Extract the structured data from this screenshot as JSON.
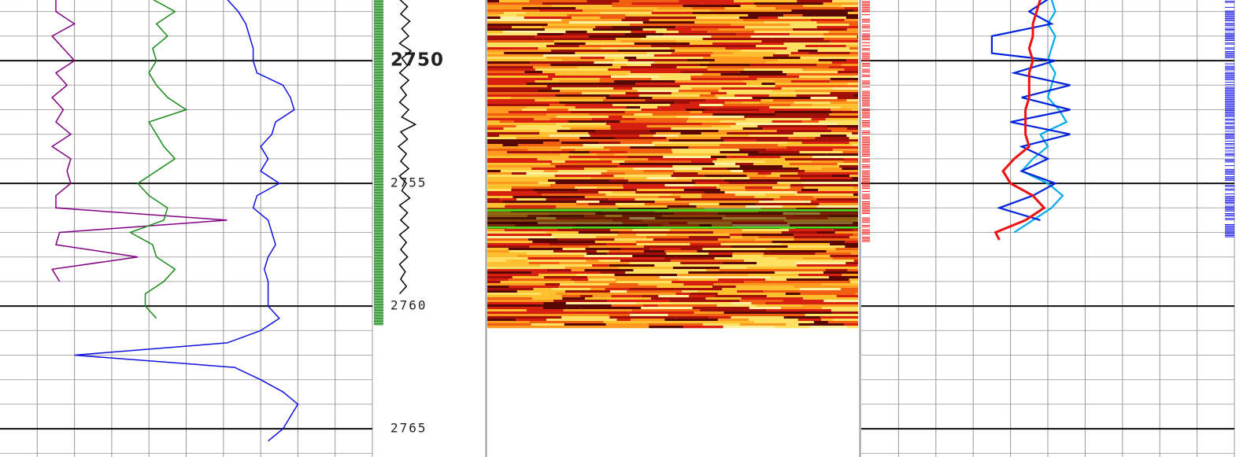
{
  "chart_data": [
    {
      "type": "line",
      "xlim": [
        0,
        10
      ],
      "ylim": [
        2747.53,
        2766.15
      ],
      "series": [
        {
          "color": "#800080",
          "depth": [
            2747.5,
            2748,
            2748.5,
            2749,
            2749.5,
            2750,
            2750.5,
            2751,
            2751.5,
            2752,
            2752.5,
            2753,
            2753.5,
            2754,
            2754.5,
            2755,
            2755.5,
            2756,
            2756.5,
            2757,
            2757.5,
            2758,
            2758.5,
            2759
          ],
          "values": [
            1.5,
            1.5,
            2.0,
            1.4,
            1.7,
            2.0,
            1.5,
            1.8,
            1.4,
            1.7,
            1.5,
            1.9,
            1.4,
            1.9,
            1.8,
            1.9,
            1.5,
            1.5,
            6.1,
            1.6,
            1.5,
            3.7,
            1.4,
            1.6
          ]
        },
        {
          "color": "#1a8a1a",
          "depth": [
            2747.5,
            2748,
            2748.5,
            2749,
            2749.5,
            2750,
            2750.5,
            2751,
            2751.5,
            2752,
            2752.5,
            2753,
            2753.5,
            2754,
            2754.5,
            2755,
            2755.5,
            2756,
            2756.5,
            2757,
            2757.5,
            2758,
            2758.5,
            2759,
            2759.5,
            2760,
            2760.5
          ],
          "values": [
            4.1,
            4.7,
            4.2,
            4.5,
            4.1,
            4.2,
            4.0,
            4.2,
            4.5,
            5.0,
            4.0,
            4.2,
            4.4,
            4.7,
            4.2,
            3.7,
            4.0,
            4.5,
            4.4,
            3.5,
            4.1,
            4.2,
            4.7,
            4.4,
            3.9,
            3.9,
            4.2
          ]
        },
        {
          "color": "#1010e0",
          "depth": [
            2747.5,
            2748,
            2748.5,
            2749,
            2749.5,
            2750,
            2750.5,
            2751,
            2751.5,
            2752,
            2752.5,
            2753,
            2753.5,
            2754,
            2754.5,
            2755,
            2755.5,
            2756,
            2756.5,
            2757,
            2757.5,
            2758,
            2758.5,
            2759,
            2759.5,
            2760,
            2760.5,
            2761,
            2761.5,
            2762,
            2762.5,
            2763,
            2763.5,
            2764,
            2764.5,
            2765,
            2765.5
          ],
          "values": [
            6.1,
            6.4,
            6.6,
            6.7,
            6.8,
            6.8,
            6.9,
            7.6,
            7.8,
            7.9,
            7.4,
            7.3,
            7.0,
            7.2,
            7.0,
            7.5,
            6.9,
            6.8,
            7.2,
            7.3,
            7.4,
            7.2,
            7.1,
            7.2,
            7.2,
            7.2,
            7.5,
            7.0,
            6.1,
            2.0,
            6.3,
            7.0,
            7.6,
            8.0,
            7.8,
            7.6,
            7.2
          ]
        }
      ]
    },
    {
      "type": "line",
      "xlim": [
        0,
        10
      ],
      "ylim": [
        2747.53,
        2766.15
      ],
      "yticks": [
        2750,
        2755,
        2760,
        2765
      ],
      "series": [
        {
          "color": "#000000",
          "depth": [
            2747.5,
            2747.8,
            2748.1,
            2748.4,
            2748.7,
            2749,
            2749.3,
            2749.6,
            2749.9,
            2750.2,
            2750.5,
            2750.8,
            2751.1,
            2751.4,
            2751.7,
            2752,
            2752.3,
            2752.6,
            2752.9,
            2753.2,
            2753.5,
            2753.8,
            2754.1,
            2754.4,
            2754.7,
            2755,
            2755.3,
            2755.6,
            2755.9,
            2756.2,
            2756.5,
            2756.8,
            2757.1,
            2757.4,
            2757.7,
            2758,
            2758.3,
            2758.6,
            2758.9,
            2759.2,
            2759.5
          ],
          "values": [
            2.4,
            3.1,
            2.5,
            3.3,
            2.6,
            3.2,
            2.4,
            3.4,
            2.6,
            3.1,
            2.4,
            3.2,
            2.5,
            3.0,
            2.4,
            3.2,
            2.6,
            3.8,
            2.5,
            3.1,
            2.3,
            3.0,
            2.5,
            3.2,
            2.4,
            3.0,
            2.6,
            3.3,
            2.4,
            3.1,
            2.5,
            3.2,
            2.4,
            3.0,
            2.5,
            3.1,
            2.4,
            2.9,
            2.5,
            3.0,
            2.4
          ]
        }
      ]
    },
    {
      "type": "line",
      "xlim": [
        0,
        10
      ],
      "ylim": [
        2747.53,
        2766.15
      ],
      "series": [
        {
          "color": "#00aaee",
          "depth": [
            2747.5,
            2748,
            2748.5,
            2749,
            2749.5,
            2750,
            2750.5,
            2751,
            2751.5,
            2752,
            2752.5,
            2753,
            2753.5,
            2754,
            2754.5,
            2755,
            2755.5,
            2756,
            2756.5,
            2757
          ],
          "values": [
            5.1,
            5.2,
            5.0,
            5.2,
            5.1,
            5.0,
            5.2,
            5.1,
            5.0,
            5.3,
            5.5,
            4.8,
            5.0,
            4.6,
            4.3,
            5.0,
            5.4,
            5.1,
            4.6,
            4.1
          ]
        },
        {
          "color": "#0022dd",
          "depth": [
            2747.5,
            2748,
            2748.5,
            2749,
            2749.7,
            2750,
            2750.5,
            2751,
            2751.5,
            2752,
            2752.5,
            2753,
            2753.5,
            2754,
            2754.5,
            2755,
            2755.5,
            2756,
            2756.5
          ],
          "values": [
            5.0,
            4.5,
            5.1,
            3.5,
            3.5,
            5.2,
            4.1,
            5.6,
            4.3,
            5.6,
            4.0,
            5.6,
            4.3,
            5.0,
            4.3,
            5.2,
            4.6,
            3.7,
            4.8
          ]
        },
        {
          "color": "#ee1111",
          "depth": [
            2747.5,
            2748,
            2748.5,
            2749,
            2749.5,
            2750,
            2750.5,
            2751,
            2751.5,
            2752,
            2752.5,
            2753,
            2753.5,
            2754,
            2754.5,
            2755,
            2755.5,
            2756,
            2756.5,
            2757,
            2757.3
          ],
          "values": [
            4.8,
            4.7,
            4.6,
            4.6,
            4.5,
            4.6,
            4.5,
            4.5,
            4.5,
            4.4,
            4.4,
            4.4,
            4.5,
            4.1,
            3.8,
            4.0,
            4.6,
            4.9,
            4.4,
            3.6,
            3.7
          ]
        }
      ]
    }
  ]
}
